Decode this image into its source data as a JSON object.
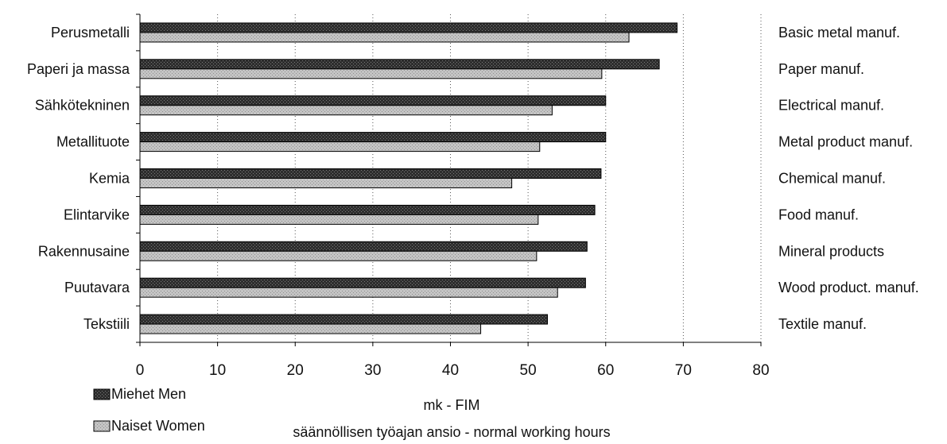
{
  "chart_data": {
    "type": "bar",
    "orientation": "horizontal",
    "categories": [
      "Perusmetalli",
      "Paperi ja massa",
      "Sähkötekninen",
      "Metallituote",
      "Kemia",
      "Elintarvike",
      "Rakennusaine",
      "Puutavara",
      "Tekstiili"
    ],
    "categories_right": [
      "Basic metal manuf.",
      "Paper manuf.",
      "Electrical manuf.",
      "Metal product manuf.",
      "Chemical manuf.",
      "Food manuf.",
      "Mineral products",
      "Wood product. manuf.",
      "Textile manuf."
    ],
    "series": [
      {
        "name": "Miehet Men",
        "values": [
          69.2,
          66.9,
          60.0,
          60.0,
          59.4,
          58.6,
          57.6,
          57.4,
          52.5
        ],
        "color": "#2b2b2b"
      },
      {
        "name": "Naiset Women",
        "values": [
          63.0,
          59.5,
          53.1,
          51.5,
          47.9,
          51.3,
          51.1,
          53.8,
          43.9
        ],
        "color": "#bdbdbd"
      }
    ],
    "xlabel": "mk - FIM",
    "subtitle": "säännöllisen työajan ansio - normal working hours",
    "xlim": [
      0,
      80
    ],
    "xticks": [
      0,
      10,
      20,
      30,
      40,
      50,
      60,
      70,
      80
    ],
    "grid": "vertical dotted",
    "legend_position": "bottom-left"
  }
}
